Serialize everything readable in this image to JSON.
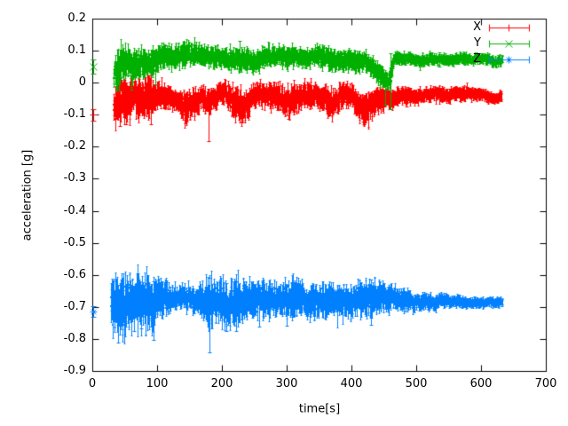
{
  "figure": {
    "background": "#ffffff",
    "axes": {
      "xlabel": "time[s]",
      "ylabel": "acceleration [g]",
      "xlim": [
        0,
        700
      ],
      "ylim": [
        -0.9,
        0.2
      ],
      "xticks": [
        0,
        100,
        200,
        300,
        400,
        500,
        600,
        700
      ],
      "xtick_labels": [
        "0",
        "100",
        "200",
        "300",
        "400",
        "500",
        "600",
        "700"
      ],
      "yticks": [
        0.2,
        0.1,
        0,
        -0.1,
        -0.2,
        -0.3,
        -0.4,
        -0.5,
        -0.6,
        -0.7,
        -0.8,
        -0.9
      ],
      "ytick_labels": [
        "0.2",
        "0.1",
        "0",
        "-0.1",
        "-0.2",
        "-0.3",
        "-0.4",
        "-0.5",
        "-0.6",
        "-0.7",
        "-0.8",
        "-0.9"
      ],
      "axis_color": "#000000",
      "grid": false
    },
    "legend": {
      "position": "top-right-inside",
      "entries": [
        {
          "label": "X",
          "color": "#ff0000",
          "marker": "plus"
        },
        {
          "label": "Y",
          "color": "#00b000",
          "marker": "cross"
        },
        {
          "label": "Z",
          "color": "#0080ff",
          "marker": "star"
        }
      ]
    }
  },
  "chart_data": {
    "type": "scatter",
    "style": "errorbars",
    "title": "",
    "xlabel": "time[s]",
    "ylabel": "acceleration [g]",
    "xlim": [
      0,
      700
    ],
    "ylim": [
      -0.9,
      0.2
    ],
    "legend_position": "top-right",
    "series": [
      {
        "name": "X",
        "color": "#ff0000",
        "marker": "plus",
        "seed": 7,
        "dt": 0.4,
        "t_range": [
          33,
          632
        ],
        "first_point": {
          "t": 1,
          "v": -0.1,
          "err": 0.018
        },
        "envelope": [
          [
            33,
            -0.07,
            0.05
          ],
          [
            40,
            -0.05,
            0.06
          ],
          [
            48,
            -0.06,
            0.055
          ],
          [
            56,
            -0.055,
            0.05
          ],
          [
            65,
            -0.045,
            0.045
          ],
          [
            75,
            -0.06,
            0.045
          ],
          [
            90,
            -0.04,
            0.05
          ],
          [
            100,
            -0.05,
            0.04
          ],
          [
            115,
            -0.05,
            0.03
          ],
          [
            135,
            -0.052,
            0.03
          ],
          [
            145,
            -0.075,
            0.045
          ],
          [
            155,
            -0.06,
            0.04
          ],
          [
            165,
            -0.04,
            0.03
          ],
          [
            180,
            -0.05,
            0.035
          ],
          [
            195,
            -0.035,
            0.028
          ],
          [
            210,
            -0.04,
            0.03
          ],
          [
            222,
            -0.065,
            0.045
          ],
          [
            235,
            -0.07,
            0.045
          ],
          [
            245,
            -0.045,
            0.032
          ],
          [
            260,
            -0.04,
            0.03
          ],
          [
            285,
            -0.045,
            0.032
          ],
          [
            300,
            -0.065,
            0.042
          ],
          [
            312,
            -0.06,
            0.04
          ],
          [
            325,
            -0.04,
            0.03
          ],
          [
            345,
            -0.04,
            0.03
          ],
          [
            360,
            -0.05,
            0.035
          ],
          [
            372,
            -0.065,
            0.04
          ],
          [
            385,
            -0.04,
            0.03
          ],
          [
            400,
            -0.035,
            0.028
          ],
          [
            408,
            -0.055,
            0.035
          ],
          [
            418,
            -0.075,
            0.04
          ],
          [
            428,
            -0.07,
            0.04
          ],
          [
            438,
            -0.05,
            0.032
          ],
          [
            450,
            -0.045,
            0.028
          ],
          [
            470,
            -0.04,
            0.022
          ],
          [
            500,
            -0.04,
            0.018
          ],
          [
            550,
            -0.038,
            0.015
          ],
          [
            600,
            -0.04,
            0.013
          ],
          [
            632,
            -0.04,
            0.012
          ]
        ],
        "outlier_errorbars": [
          [
            42,
            -0.04,
            -0.135,
            0.01
          ],
          [
            52,
            -0.05,
            -0.13,
            0.0
          ],
          [
            90,
            -0.04,
            -0.13,
            0.025
          ],
          [
            144,
            -0.08,
            -0.128,
            -0.04
          ],
          [
            180,
            -0.05,
            -0.183,
            -0.02
          ],
          [
            232,
            -0.07,
            -0.122,
            -0.04
          ],
          [
            303,
            -0.06,
            -0.112,
            -0.035
          ],
          [
            418,
            -0.075,
            -0.122,
            -0.045
          ],
          [
            485,
            -0.045,
            -0.075,
            -0.02
          ]
        ]
      },
      {
        "name": "Y",
        "color": "#00b000",
        "marker": "cross",
        "seed": 13,
        "dt": 0.4,
        "t_range": [
          33,
          633
        ],
        "first_point": {
          "t": 1,
          "v": 0.05,
          "err": 0.022
        },
        "envelope": [
          [
            33,
            0.04,
            0.045
          ],
          [
            40,
            0.05,
            0.05
          ],
          [
            50,
            0.065,
            0.038
          ],
          [
            62,
            0.06,
            0.04
          ],
          [
            75,
            0.065,
            0.035
          ],
          [
            90,
            0.068,
            0.033
          ],
          [
            105,
            0.075,
            0.03
          ],
          [
            120,
            0.08,
            0.028
          ],
          [
            140,
            0.085,
            0.03
          ],
          [
            150,
            0.09,
            0.028
          ],
          [
            162,
            0.085,
            0.026
          ],
          [
            175,
            0.075,
            0.025
          ],
          [
            200,
            0.075,
            0.025
          ],
          [
            228,
            0.08,
            0.028
          ],
          [
            250,
            0.075,
            0.025
          ],
          [
            270,
            0.078,
            0.026
          ],
          [
            300,
            0.08,
            0.025
          ],
          [
            330,
            0.075,
            0.024
          ],
          [
            355,
            0.082,
            0.026
          ],
          [
            370,
            0.078,
            0.025
          ],
          [
            400,
            0.075,
            0.024
          ],
          [
            425,
            0.07,
            0.025
          ],
          [
            433,
            0.055,
            0.028
          ],
          [
            442,
            0.03,
            0.027
          ],
          [
            450,
            0.005,
            0.022
          ],
          [
            456,
            -0.003,
            0.018
          ],
          [
            461,
            0.025,
            0.025
          ],
          [
            466,
            0.07,
            0.018
          ],
          [
            475,
            0.071,
            0.014
          ],
          [
            500,
            0.07,
            0.013
          ],
          [
            550,
            0.069,
            0.012
          ],
          [
            600,
            0.07,
            0.011
          ],
          [
            633,
            0.07,
            0.011
          ]
        ],
        "outlier_errorbars": [
          [
            40,
            0.03,
            -0.005,
            0.06
          ],
          [
            60,
            0.02,
            -0.022,
            0.05
          ],
          [
            97,
            0.04,
            -0.005,
            0.065
          ],
          [
            228,
            0.085,
            0.06,
            0.13
          ],
          [
            265,
            0.08,
            0.055,
            0.112
          ],
          [
            358,
            0.085,
            0.06,
            0.108
          ],
          [
            452,
            -0.005,
            -0.07,
            0.02
          ],
          [
            460,
            0.005,
            -0.083,
            0.093
          ],
          [
            536,
            0.072,
            0.05,
            0.094
          ]
        ]
      },
      {
        "name": "Z",
        "color": "#0080ff",
        "marker": "star",
        "seed": 42,
        "dt": 0.4,
        "t_range": [
          29,
          633
        ],
        "first_point": {
          "t": 1,
          "v": -0.715,
          "err": 0.016
        },
        "envelope": [
          [
            29,
            -0.69,
            0.07
          ],
          [
            45,
            -0.685,
            0.08
          ],
          [
            60,
            -0.69,
            0.07
          ],
          [
            75,
            -0.685,
            0.072
          ],
          [
            90,
            -0.69,
            0.075
          ],
          [
            100,
            -0.68,
            0.06
          ],
          [
            110,
            -0.675,
            0.042
          ],
          [
            125,
            -0.672,
            0.032
          ],
          [
            150,
            -0.673,
            0.028
          ],
          [
            168,
            -0.675,
            0.035
          ],
          [
            180,
            -0.68,
            0.065
          ],
          [
            192,
            -0.675,
            0.05
          ],
          [
            205,
            -0.685,
            0.06
          ],
          [
            220,
            -0.68,
            0.06
          ],
          [
            235,
            -0.675,
            0.05
          ],
          [
            255,
            -0.68,
            0.045
          ],
          [
            280,
            -0.678,
            0.042
          ],
          [
            300,
            -0.68,
            0.045
          ],
          [
            315,
            -0.675,
            0.05
          ],
          [
            335,
            -0.677,
            0.04
          ],
          [
            360,
            -0.675,
            0.04
          ],
          [
            385,
            -0.676,
            0.038
          ],
          [
            405,
            -0.675,
            0.04
          ],
          [
            430,
            -0.672,
            0.046
          ],
          [
            450,
            -0.675,
            0.035
          ],
          [
            470,
            -0.678,
            0.028
          ],
          [
            500,
            -0.679,
            0.02
          ],
          [
            530,
            -0.68,
            0.016
          ],
          [
            560,
            -0.68,
            0.013
          ],
          [
            600,
            -0.68,
            0.01
          ],
          [
            633,
            -0.68,
            0.009
          ]
        ],
        "outlier_errorbars": [
          [
            40,
            -0.72,
            -0.81,
            -0.63
          ],
          [
            65,
            -0.7,
            -0.775,
            -0.635
          ],
          [
            76,
            -0.695,
            -0.768,
            -0.63
          ],
          [
            95,
            -0.7,
            -0.803,
            -0.62
          ],
          [
            181,
            -0.72,
            -0.843,
            -0.61
          ],
          [
            207,
            -0.7,
            -0.775,
            -0.625
          ],
          [
            222,
            -0.695,
            -0.775,
            -0.62
          ],
          [
            258,
            -0.69,
            -0.762,
            -0.63
          ],
          [
            300,
            -0.69,
            -0.758,
            -0.63
          ],
          [
            430,
            -0.68,
            -0.755,
            -0.615
          ]
        ]
      }
    ]
  }
}
